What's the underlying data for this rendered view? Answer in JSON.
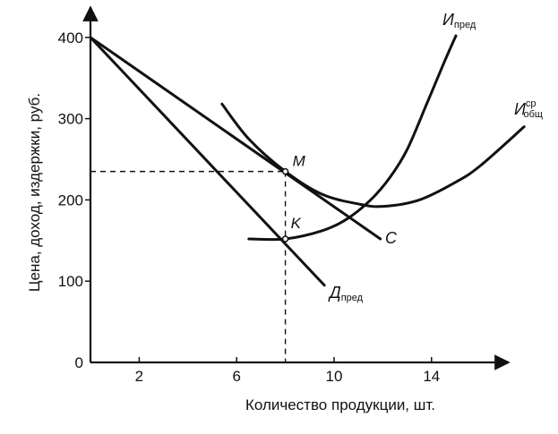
{
  "chart_data": {
    "type": "line",
    "title": "",
    "xlabel": "Количество продукции, шт.",
    "ylabel": "Цена, доход, издержки, руб.",
    "xlim": [
      0,
      17
    ],
    "ylim": [
      0,
      400
    ],
    "x_ticks": [
      {
        "value": 2,
        "label": "2"
      },
      {
        "value": 6,
        "label": "6"
      },
      {
        "value": 10,
        "label": "10"
      },
      {
        "value": 14,
        "label": "14"
      }
    ],
    "y_ticks": [
      {
        "value": 0,
        "label": "0"
      },
      {
        "value": 100,
        "label": "100"
      },
      {
        "value": 200,
        "label": "200"
      },
      {
        "value": 300,
        "label": "300"
      },
      {
        "value": 400,
        "label": "400"
      }
    ],
    "grid": false,
    "series": [
      {
        "key": "price",
        "name": "C",
        "label_main": "C",
        "label_sub": "",
        "label_sup": "",
        "x": [
          0,
          11.9
        ],
        "y": [
          400,
          152
        ]
      },
      {
        "key": "mr",
        "name": "Д пред",
        "label_main": "Д",
        "label_sub": "пред",
        "label_sup": "",
        "x": [
          0,
          9.6
        ],
        "y": [
          400,
          95
        ]
      },
      {
        "key": "atc",
        "name": "И ср общ",
        "label_main": "И",
        "label_sub": "общ",
        "label_sup": "ср",
        "x": [
          5.4,
          6.5,
          8,
          9.5,
          11,
          12,
          13.5,
          15,
          16,
          17.8
        ],
        "y": [
          318,
          275,
          235,
          207,
          195,
          192,
          200,
          222,
          242,
          290
        ]
      },
      {
        "key": "mc",
        "name": "И пред",
        "label_main": "И",
        "label_sub": "пред",
        "label_sup": "",
        "x": [
          6.5,
          8,
          9.5,
          10.5,
          11.5,
          12.3,
          13,
          13.8,
          14.5,
          15
        ],
        "y": [
          152,
          152,
          162,
          176,
          200,
          228,
          262,
          318,
          368,
          402
        ]
      }
    ],
    "points": [
      {
        "name": "M",
        "x": 8,
        "y": 235
      },
      {
        "name": "K",
        "x": 8,
        "y": 152
      }
    ],
    "guides": [
      {
        "from": [
          0,
          235
        ],
        "to": [
          8,
          235
        ]
      },
      {
        "from": [
          8,
          235
        ],
        "to": [
          8,
          0
        ]
      }
    ]
  }
}
